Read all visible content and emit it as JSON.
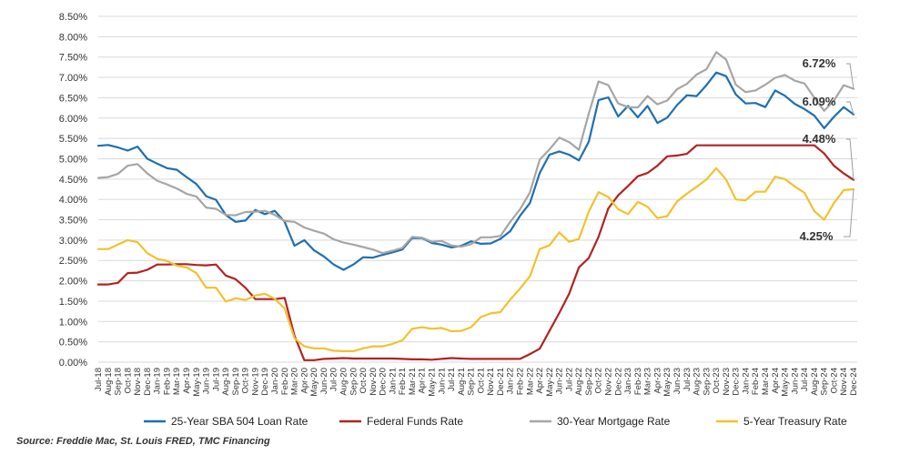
{
  "chart_data": {
    "type": "line",
    "title": "",
    "xlabel": "",
    "ylabel": "",
    "ylim": [
      0,
      8.5
    ],
    "y_ticks": [
      0,
      0.5,
      1,
      1.5,
      2,
      2.5,
      3,
      3.5,
      4,
      4.5,
      5,
      5.5,
      6,
      6.5,
      7,
      7.5,
      8,
      8.5
    ],
    "y_tick_labels": [
      "0.00%",
      "0.50%",
      "1.00%",
      "1.50%",
      "2.00%",
      "2.50%",
      "3.00%",
      "3.50%",
      "4.00%",
      "4.50%",
      "5.00%",
      "5.50%",
      "6.00%",
      "6.50%",
      "7.00%",
      "7.50%",
      "8.00%",
      "8.50%"
    ],
    "grid": "horizontal",
    "legend_position": "bottom",
    "x": [
      "Jul-18",
      "Aug-18",
      "Sep-18",
      "Oct-18",
      "Nov-18",
      "Dec-18",
      "Jan-19",
      "Feb-19",
      "Mar-19",
      "Apr-19",
      "May-19",
      "Jun-19",
      "Jul-19",
      "Aug-19",
      "Sep-19",
      "Oct-19",
      "Nov-19",
      "Dec-19",
      "Jan-20",
      "Feb-20",
      "Mar-20",
      "Apr-20",
      "May-20",
      "Jun-20",
      "Jul-20",
      "Aug-20",
      "Sep-20",
      "Oct-20",
      "Nov-20",
      "Dec-20",
      "Jan-21",
      "Feb-21",
      "Mar-21",
      "Apr-21",
      "May-21",
      "Jun-21",
      "Jul-21",
      "Aug-21",
      "Sep-21",
      "Oct-21",
      "Nov-21",
      "Dec-21",
      "Jan-22",
      "Feb-22",
      "Mar-22",
      "Apr-22",
      "May-22",
      "Jun-22",
      "Jul-22",
      "Aug-22",
      "Sep-22",
      "Oct-22",
      "Nov-22",
      "Dec-22",
      "Jan-23",
      "Feb-23",
      "Mar-23",
      "Apr-23",
      "May-23",
      "Jun-23",
      "Jul-23",
      "Aug-23",
      "Sep-23",
      "Oct-23",
      "Nov-23",
      "Dec-23",
      "Jan-24",
      "Feb-24",
      "Mar-24",
      "Apr-24",
      "May-24",
      "Jun-24",
      "Jul-24",
      "Aug-24",
      "Sep-24",
      "Oct-24",
      "Nov-24",
      "Dec-24"
    ],
    "series": [
      {
        "name": "25-Year SBA 504 Loan Rate",
        "color": "#1f6fb0",
        "values": [
          5.32,
          5.34,
          5.28,
          5.2,
          5.3,
          5.0,
          4.88,
          4.77,
          4.73,
          4.55,
          4.38,
          4.08,
          3.99,
          3.62,
          3.45,
          3.48,
          3.74,
          3.64,
          3.72,
          3.45,
          2.86,
          3.0,
          2.75,
          2.6,
          2.4,
          2.27,
          2.4,
          2.58,
          2.57,
          2.64,
          2.7,
          2.77,
          3.05,
          3.05,
          2.93,
          2.89,
          2.82,
          2.86,
          2.97,
          2.91,
          2.92,
          3.03,
          3.22,
          3.6,
          3.91,
          4.65,
          5.1,
          5.18,
          5.1,
          4.96,
          5.42,
          6.44,
          6.51,
          6.04,
          6.3,
          6.02,
          6.3,
          5.88,
          6.01,
          6.32,
          6.56,
          6.54,
          6.81,
          7.12,
          7.03,
          6.58,
          6.36,
          6.37,
          6.27,
          6.68,
          6.55,
          6.35,
          6.22,
          6.06,
          5.75,
          6.03,
          6.27,
          6.09
        ]
      },
      {
        "name": "Federal Funds Rate",
        "color": "#b22222",
        "values": [
          1.91,
          1.91,
          1.95,
          2.19,
          2.2,
          2.27,
          2.4,
          2.4,
          2.41,
          2.41,
          2.39,
          2.38,
          2.4,
          2.13,
          2.04,
          1.83,
          1.55,
          1.55,
          1.55,
          1.58,
          0.65,
          0.05,
          0.05,
          0.08,
          0.09,
          0.1,
          0.09,
          0.09,
          0.09,
          0.09,
          0.09,
          0.08,
          0.07,
          0.07,
          0.06,
          0.08,
          0.1,
          0.09,
          0.08,
          0.08,
          0.08,
          0.08,
          0.08,
          0.08,
          0.2,
          0.33,
          0.77,
          1.21,
          1.68,
          2.33,
          2.56,
          3.08,
          3.78,
          4.1,
          4.33,
          4.57,
          4.65,
          4.83,
          5.06,
          5.08,
          5.12,
          5.33,
          5.33,
          5.33,
          5.33,
          5.33,
          5.33,
          5.33,
          5.33,
          5.33,
          5.33,
          5.33,
          5.33,
          5.33,
          5.13,
          4.83,
          4.64,
          4.48
        ]
      },
      {
        "name": "30-Year Mortgage Rate",
        "color": "#a6a6a6",
        "values": [
          4.53,
          4.55,
          4.63,
          4.83,
          4.87,
          4.64,
          4.46,
          4.37,
          4.27,
          4.14,
          4.07,
          3.8,
          3.77,
          3.62,
          3.61,
          3.69,
          3.7,
          3.72,
          3.62,
          3.47,
          3.45,
          3.31,
          3.23,
          3.16,
          3.02,
          2.94,
          2.89,
          2.83,
          2.77,
          2.68,
          2.74,
          2.81,
          3.08,
          3.06,
          2.96,
          2.98,
          2.87,
          2.84,
          2.9,
          3.07,
          3.07,
          3.1,
          3.45,
          3.76,
          4.17,
          4.98,
          5.23,
          5.52,
          5.41,
          5.22,
          6.11,
          6.9,
          6.81,
          6.36,
          6.27,
          6.26,
          6.54,
          6.34,
          6.43,
          6.71,
          6.84,
          7.07,
          7.2,
          7.62,
          7.44,
          6.82,
          6.64,
          6.68,
          6.82,
          6.99,
          7.06,
          6.92,
          6.85,
          6.5,
          6.18,
          6.43,
          6.81,
          6.72
        ]
      },
      {
        "name": "5-Year Treasury Rate",
        "color": "#f2c12e",
        "values": [
          2.78,
          2.78,
          2.89,
          3.0,
          2.95,
          2.68,
          2.54,
          2.49,
          2.37,
          2.33,
          2.19,
          1.83,
          1.83,
          1.49,
          1.57,
          1.53,
          1.64,
          1.68,
          1.56,
          1.32,
          0.59,
          0.39,
          0.34,
          0.34,
          0.28,
          0.27,
          0.27,
          0.34,
          0.39,
          0.39,
          0.45,
          0.54,
          0.82,
          0.86,
          0.82,
          0.84,
          0.76,
          0.77,
          0.86,
          1.11,
          1.2,
          1.23,
          1.54,
          1.81,
          2.11,
          2.78,
          2.87,
          3.19,
          2.96,
          3.03,
          3.7,
          4.18,
          4.06,
          3.76,
          3.64,
          3.94,
          3.82,
          3.54,
          3.59,
          3.95,
          4.14,
          4.31,
          4.49,
          4.77,
          4.49,
          4.0,
          3.98,
          4.19,
          4.19,
          4.56,
          4.5,
          4.32,
          4.16,
          3.71,
          3.5,
          3.91,
          4.23,
          4.25
        ]
      }
    ],
    "end_labels": [
      {
        "series": 2,
        "text": "6.72%"
      },
      {
        "series": 0,
        "text": "6.09%"
      },
      {
        "series": 1,
        "text": "4.48%"
      },
      {
        "series": 3,
        "text": "4.25%"
      }
    ]
  },
  "source_note": "Source: Freddie Mac, St. Louis FRED, TMC Financing"
}
